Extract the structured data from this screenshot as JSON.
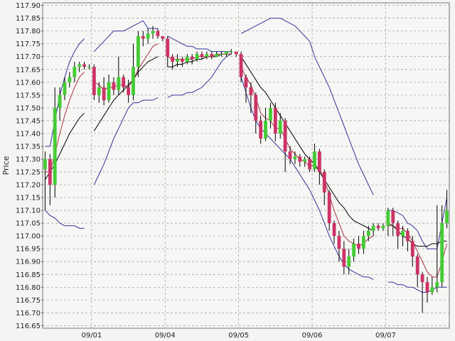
{
  "chart_data": {
    "type": "candlestick",
    "ylabel": "Price",
    "categories": [
      null,
      null,
      null,
      null,
      null,
      null,
      null,
      null,
      null,
      null,
      "09/01",
      null,
      null,
      null,
      null,
      null,
      null,
      null,
      null,
      null,
      null,
      null,
      null,
      null,
      null,
      "09/04",
      null,
      null,
      null,
      null,
      null,
      null,
      null,
      null,
      null,
      null,
      null,
      null,
      null,
      null,
      "09/05",
      null,
      null,
      null,
      null,
      null,
      null,
      null,
      null,
      null,
      null,
      null,
      null,
      null,
      null,
      "09/06",
      null,
      null,
      null,
      null,
      null,
      null,
      null,
      null,
      null,
      null,
      null,
      null,
      null,
      null,
      "09/07",
      null,
      null,
      null,
      null,
      null,
      null,
      null,
      null,
      null,
      null,
      null,
      null
    ],
    "open": [
      117.26,
      117.3,
      117.2,
      117.5,
      117.55,
      117.6,
      117.62,
      117.66,
      117.67,
      117.66,
      117.66,
      117.55,
      117.58,
      117.53,
      117.6,
      117.57,
      117.62,
      117.58,
      117.55,
      117.66,
      117.78,
      117.77,
      117.79,
      117.8,
      117.78,
      117.77,
      117.7,
      117.68,
      117.69,
      117.68,
      117.7,
      117.69,
      117.71,
      117.7,
      117.71,
      117.7,
      117.71,
      117.71,
      117.72,
      117.72,
      117.71,
      117.62,
      117.58,
      117.55,
      117.45,
      117.38,
      117.45,
      117.5,
      117.4,
      117.45,
      117.33,
      117.3,
      117.31,
      117.29,
      117.3,
      117.26,
      117.33,
      117.25,
      117.17,
      117.05,
      117.0,
      116.95,
      116.88,
      116.92,
      116.97,
      116.95,
      117.0,
      117.02,
      117.04,
      117.03,
      117.04,
      117.1,
      117.05,
      117.0,
      117.02,
      116.98,
      116.92,
      116.85,
      116.82,
      116.78,
      116.8,
      116.82,
      117.05
    ],
    "high": [
      117.33,
      117.32,
      117.58,
      117.58,
      117.62,
      117.64,
      117.68,
      117.68,
      117.68,
      117.67,
      117.67,
      117.6,
      117.62,
      117.63,
      117.62,
      117.7,
      117.63,
      117.61,
      117.75,
      117.8,
      117.8,
      117.81,
      117.82,
      117.81,
      117.78,
      117.78,
      117.71,
      117.71,
      117.7,
      117.71,
      117.71,
      117.72,
      117.72,
      117.72,
      117.72,
      117.72,
      117.72,
      117.72,
      117.73,
      117.72,
      117.72,
      117.63,
      117.6,
      117.56,
      117.47,
      117.5,
      117.52,
      117.52,
      117.48,
      117.46,
      117.35,
      117.33,
      117.32,
      117.31,
      117.31,
      117.36,
      117.34,
      117.26,
      117.18,
      117.06,
      117.02,
      116.98,
      116.95,
      116.99,
      117.0,
      117.02,
      117.04,
      117.05,
      117.05,
      117.05,
      117.11,
      117.11,
      117.06,
      117.04,
      117.03,
      117.0,
      116.93,
      116.86,
      116.84,
      116.84,
      117.12,
      117.12,
      117.18
    ],
    "low": [
      117.1,
      117.12,
      117.15,
      117.45,
      117.53,
      117.58,
      117.6,
      117.64,
      117.65,
      117.65,
      117.53,
      117.52,
      117.51,
      117.52,
      117.55,
      117.55,
      117.56,
      117.52,
      117.53,
      117.62,
      117.74,
      117.75,
      117.77,
      117.77,
      117.76,
      117.66,
      117.65,
      117.66,
      117.66,
      117.67,
      117.67,
      117.68,
      117.69,
      117.69,
      117.69,
      117.7,
      117.7,
      117.7,
      117.71,
      117.7,
      117.6,
      117.52,
      117.48,
      117.4,
      117.36,
      117.37,
      117.42,
      117.37,
      117.38,
      117.25,
      117.28,
      117.28,
      117.27,
      117.27,
      117.25,
      117.25,
      117.2,
      117.12,
      117.02,
      116.97,
      116.9,
      116.85,
      116.85,
      116.9,
      116.93,
      116.93,
      116.98,
      117.0,
      117.02,
      117.02,
      117.0,
      117.0,
      116.95,
      116.96,
      116.94,
      116.88,
      116.8,
      116.7,
      116.74,
      116.77,
      116.78,
      116.8,
      117.03
    ],
    "close": [
      117.3,
      117.2,
      117.5,
      117.55,
      117.6,
      117.62,
      117.66,
      117.67,
      117.66,
      117.66,
      117.55,
      117.58,
      117.53,
      117.6,
      117.57,
      117.62,
      117.58,
      117.55,
      117.66,
      117.78,
      117.77,
      117.79,
      117.8,
      117.78,
      117.77,
      117.7,
      117.68,
      117.69,
      117.68,
      117.7,
      117.69,
      117.71,
      117.7,
      117.71,
      117.7,
      117.71,
      117.71,
      117.72,
      117.72,
      117.71,
      117.62,
      117.58,
      117.55,
      117.45,
      117.38,
      117.45,
      117.5,
      117.4,
      117.45,
      117.33,
      117.3,
      117.31,
      117.29,
      117.3,
      117.26,
      117.33,
      117.25,
      117.17,
      117.05,
      117.0,
      116.95,
      116.88,
      116.92,
      116.97,
      116.95,
      117.0,
      117.02,
      117.04,
      117.03,
      117.04,
      117.1,
      117.05,
      117.0,
      117.02,
      116.98,
      116.92,
      116.85,
      116.82,
      116.78,
      116.8,
      116.82,
      117.05,
      117.1
    ],
    "up_color": "#44cc33",
    "down_color": "#cc3366",
    "lines": [
      {
        "color": "#333399",
        "values": [
          117.35,
          117.35,
          117.45,
          117.55,
          117.62,
          117.68,
          117.72,
          117.75,
          117.77,
          null,
          117.72,
          117.74,
          117.76,
          117.78,
          117.8,
          117.8,
          117.8,
          117.81,
          117.82,
          117.83,
          117.84,
          117.81,
          117.81,
          117.81,
          null,
          117.78,
          117.77,
          117.76,
          117.75,
          117.74,
          117.74,
          117.73,
          117.73,
          117.73,
          117.72,
          117.72,
          117.72,
          117.72,
          117.72,
          null,
          117.79,
          117.8,
          117.81,
          117.82,
          117.83,
          117.84,
          117.85,
          117.85,
          117.85,
          117.84,
          117.83,
          117.82,
          117.8,
          117.78,
          117.76,
          117.7,
          117.66,
          117.62,
          117.58,
          117.53,
          117.48,
          117.43,
          117.38,
          117.33,
          117.28,
          117.24,
          117.2,
          117.16,
          null,
          null,
          117.1,
          117.1,
          117.09,
          117.08,
          117.05,
          117.04,
          117.02,
          116.98,
          116.95,
          116.95,
          116.95,
          117.05,
          117.15
        ]
      },
      {
        "color": "#333399",
        "values": [
          117.1,
          117.08,
          117.07,
          117.05,
          117.04,
          117.04,
          117.04,
          117.03,
          117.03,
          null,
          117.2,
          117.24,
          117.28,
          117.33,
          117.38,
          117.42,
          117.46,
          117.5,
          117.52,
          117.52,
          117.53,
          117.53,
          117.53,
          117.54,
          null,
          117.54,
          117.55,
          117.55,
          117.55,
          117.56,
          117.56,
          117.57,
          117.58,
          117.6,
          117.62,
          117.65,
          117.68,
          117.7,
          117.71,
          null,
          117.62,
          117.56,
          117.5,
          117.45,
          117.42,
          117.4,
          117.38,
          117.36,
          117.34,
          117.32,
          117.3,
          117.27,
          117.24,
          117.21,
          117.18,
          117.14,
          117.1,
          117.05,
          117.0,
          116.96,
          116.92,
          116.89,
          116.87,
          116.86,
          116.85,
          116.84,
          116.84,
          116.83,
          null,
          null,
          116.82,
          116.82,
          116.81,
          116.81,
          116.8,
          116.8,
          116.79,
          116.78,
          116.78,
          116.79,
          116.8,
          116.8,
          116.8
        ]
      },
      {
        "color": "#000000",
        "values": [
          117.22,
          117.25,
          117.28,
          117.32,
          117.36,
          117.4,
          117.43,
          117.46,
          117.48,
          null,
          117.41,
          117.44,
          117.47,
          117.5,
          117.53,
          117.55,
          117.57,
          117.59,
          117.61,
          117.64,
          117.66,
          117.68,
          117.69,
          117.7,
          null,
          117.66,
          117.66,
          117.67,
          117.67,
          117.68,
          117.68,
          117.69,
          117.69,
          117.7,
          117.7,
          117.7,
          117.71,
          117.71,
          117.71,
          null,
          117.7,
          117.67,
          117.64,
          117.61,
          117.58,
          117.56,
          117.53,
          117.5,
          117.47,
          117.44,
          117.41,
          117.38,
          117.35,
          117.32,
          117.3,
          117.28,
          117.25,
          117.22,
          117.19,
          117.16,
          117.13,
          117.11,
          117.08,
          117.06,
          117.05,
          117.04,
          117.03,
          117.02,
          null,
          null,
          117.05,
          117.04,
          117.02,
          117.0,
          116.99,
          116.97,
          116.96,
          116.96,
          116.96,
          116.97,
          116.97,
          116.98,
          116.98
        ]
      },
      {
        "color": "#aa3344",
        "values": [
          117.25,
          117.25,
          117.32,
          117.4,
          117.47,
          117.53,
          117.58,
          117.62,
          117.64,
          null,
          117.6,
          117.59,
          117.57,
          117.58,
          117.58,
          117.59,
          117.59,
          117.58,
          117.61,
          117.65,
          117.68,
          117.71,
          117.74,
          117.75,
          null,
          117.7,
          117.69,
          117.69,
          117.69,
          117.69,
          117.69,
          117.7,
          117.7,
          117.7,
          117.7,
          117.71,
          117.71,
          117.71,
          117.71,
          null,
          117.66,
          117.62,
          117.59,
          117.54,
          117.48,
          117.46,
          117.45,
          117.42,
          117.42,
          117.38,
          117.34,
          117.32,
          117.3,
          117.29,
          117.27,
          117.28,
          117.26,
          117.22,
          117.16,
          117.1,
          117.05,
          117.0,
          116.98,
          116.97,
          116.96,
          116.97,
          116.99,
          117.0,
          null,
          null,
          117.04,
          117.04,
          117.03,
          117.03,
          117.01,
          116.98,
          116.94,
          116.9,
          116.86,
          116.84,
          116.84,
          116.9,
          116.97
        ]
      }
    ],
    "ylim": [
      116.64,
      117.91
    ],
    "yticks": [
      116.65,
      {
        "value": 116.7,
        "label": "116.70"
      },
      116.75,
      {
        "value": 116.8,
        "label": "116.80"
      },
      116.85,
      {
        "value": 116.9,
        "label": "116.90"
      },
      116.95,
      {
        "value": 117,
        "label": "117.00"
      },
      117.05,
      {
        "value": 117.1,
        "label": "117.10"
      },
      117.15,
      {
        "value": 117.2,
        "label": "117.20"
      },
      117.25,
      {
        "value": 117.3,
        "label": "117.30"
      },
      117.35,
      {
        "value": 117.4,
        "label": "117.40"
      },
      117.45,
      {
        "value": 117.5,
        "label": "117.50"
      },
      117.55,
      {
        "value": 117.6,
        "label": "117.60"
      },
      117.65,
      {
        "value": 117.7,
        "label": "117.70"
      },
      117.75,
      {
        "value": 117.8,
        "label": "117.80"
      },
      117.85,
      {
        "value": 117.9,
        "label": "117.90"
      }
    ],
    "grid": true
  }
}
